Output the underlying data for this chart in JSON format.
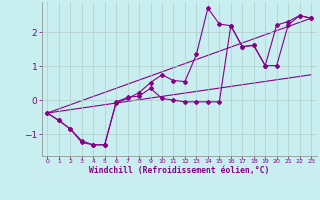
{
  "xlabel": "Windchill (Refroidissement éolien,°C)",
  "bg_color": "#c8eef0",
  "line_color": "#880088",
  "grid_color": "#b0cccc",
  "x_ticks": [
    0,
    1,
    2,
    3,
    4,
    5,
    6,
    7,
    8,
    9,
    10,
    11,
    12,
    13,
    14,
    15,
    16,
    17,
    18,
    19,
    20,
    21,
    22,
    23
  ],
  "y_ticks": [
    -1,
    0,
    1,
    2
  ],
  "xlim": [
    -0.5,
    23.5
  ],
  "ylim": [
    -1.65,
    2.9
  ],
  "series": {
    "line1": {
      "x": [
        0,
        1,
        2,
        3,
        4,
        5,
        6,
        7,
        8,
        9,
        10,
        11,
        12,
        13,
        14,
        15,
        16,
        17,
        18,
        19,
        20,
        21,
        22,
        23
      ],
      "y": [
        -0.38,
        -0.6,
        -0.85,
        -1.2,
        -1.32,
        -1.32,
        -0.08,
        0.05,
        0.22,
        0.52,
        0.75,
        0.58,
        0.55,
        1.35,
        2.72,
        2.25,
        2.2,
        1.58,
        1.62,
        1.02,
        2.22,
        2.32,
        2.5,
        2.42
      ]
    },
    "line2": {
      "x": [
        0,
        1,
        2,
        3,
        4,
        5,
        6,
        7,
        8,
        9,
        10,
        11,
        12,
        13,
        14,
        15,
        16,
        17,
        18,
        19,
        20,
        21,
        22,
        23
      ],
      "y": [
        -0.38,
        -0.6,
        -0.85,
        -1.25,
        -1.32,
        -1.32,
        -0.05,
        0.08,
        0.12,
        0.35,
        0.05,
        0.0,
        -0.05,
        -0.05,
        -0.05,
        -0.05,
        2.2,
        1.58,
        1.62,
        1.02,
        1.02,
        2.22,
        2.5,
        2.42
      ]
    },
    "line3_x": [
      0,
      23
    ],
    "line3_y": [
      -0.38,
      2.42
    ],
    "line4_x": [
      0,
      23
    ],
    "line4_y": [
      -0.38,
      0.75
    ]
  }
}
